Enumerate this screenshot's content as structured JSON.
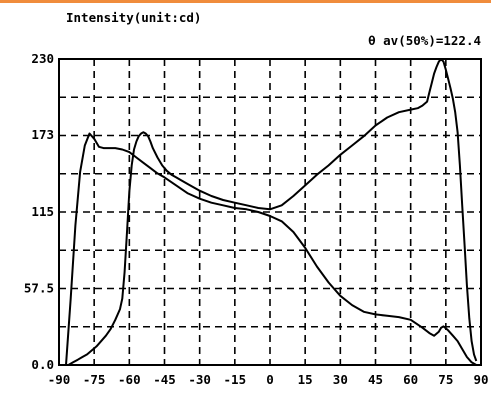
{
  "chart_data": {
    "type": "line",
    "title": "Intensity(unit:cd)",
    "annotation": "θ av(50%)=122.4",
    "xlabel": "",
    "ylabel": "",
    "xlim": [
      -90,
      90
    ],
    "ylim": [
      0,
      230
    ],
    "x_ticks": [
      "-90",
      "-75",
      "-60",
      "-45",
      "-30",
      "-15",
      "0",
      "15",
      "30",
      "45",
      "60",
      "75",
      "90"
    ],
    "y_ticks": [
      "0.0",
      "57.5",
      "115",
      "173",
      "230"
    ],
    "grid": true,
    "grid_color": "#000000",
    "line_color": "#000000",
    "series": [
      {
        "x": [
          -87,
          -85,
          -83,
          -81,
          -79,
          -77,
          -75,
          -73,
          -71,
          -69,
          -66,
          -63,
          -60,
          -57,
          -54,
          -51,
          -48,
          -45,
          -40,
          -35,
          -30,
          -25,
          -20,
          -15,
          -10,
          -5,
          0,
          5,
          10,
          15,
          20,
          25,
          30,
          35,
          40,
          45,
          50,
          55,
          60,
          65,
          68,
          70,
          72,
          73,
          74,
          76,
          78,
          80,
          82,
          84,
          86,
          88
        ],
        "y": [
          0,
          50,
          105,
          145,
          165,
          174,
          170,
          164,
          163,
          163,
          163,
          162,
          160,
          156,
          152,
          148,
          144,
          141,
          135,
          129,
          125,
          122,
          120,
          118,
          117,
          115,
          112,
          108,
          100,
          88,
          74,
          62,
          52,
          45,
          40,
          38,
          37,
          36,
          34,
          28,
          24,
          22,
          25,
          28,
          29,
          26,
          22,
          18,
          12,
          6,
          2,
          0
        ]
      },
      {
        "x": [
          -86,
          -84,
          -82,
          -80,
          -78,
          -76,
          -74,
          -72,
          -70,
          -68,
          -66,
          -64,
          -63,
          -62,
          -61,
          -60,
          -59,
          -58,
          -57,
          -56,
          -55,
          -54,
          -53,
          -52,
          -51,
          -50,
          -48,
          -46,
          -44,
          -42,
          -40,
          -38,
          -35,
          -30,
          -25,
          -20,
          -15,
          -10,
          -5,
          0,
          5,
          10,
          15,
          20,
          25,
          30,
          35,
          40,
          45,
          50,
          55,
          60,
          63,
          65,
          67,
          68,
          69,
          70,
          71,
          72,
          73,
          74,
          75,
          76,
          77,
          78,
          79,
          80,
          81,
          82,
          83,
          84,
          85,
          86,
          87,
          88
        ],
        "y": [
          0,
          2,
          4,
          6,
          8,
          11,
          14,
          18,
          22,
          27,
          34,
          42,
          50,
          70,
          100,
          130,
          150,
          162,
          168,
          172,
          174,
          175,
          174,
          172,
          168,
          163,
          156,
          150,
          146,
          143,
          141,
          139,
          136,
          131,
          127,
          124,
          122,
          120,
          118,
          117,
          120,
          127,
          135,
          143,
          150,
          158,
          165,
          172,
          180,
          186,
          190,
          192,
          193,
          195,
          198,
          205,
          212,
          219,
          224,
          228,
          230,
          228,
          222,
          215,
          208,
          200,
          190,
          175,
          150,
          120,
          90,
          60,
          35,
          18,
          8,
          3
        ]
      }
    ]
  }
}
